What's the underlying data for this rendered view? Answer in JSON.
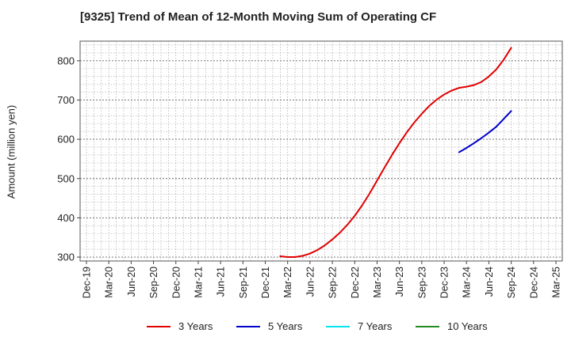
{
  "chart_data": {
    "type": "line",
    "title": "[9325]  Trend of Mean of 12-Month Moving Sum of Operating CF",
    "xlabel": "",
    "ylabel": "Amount (million yen)",
    "ylim": [
      290,
      850
    ],
    "yticks": [
      300,
      400,
      500,
      600,
      700,
      800
    ],
    "xtick_labels": [
      "Dec-19",
      "Mar-20",
      "Jun-20",
      "Sep-20",
      "Dec-20",
      "Mar-21",
      "Jun-21",
      "Sep-21",
      "Dec-21",
      "Mar-22",
      "Jun-22",
      "Sep-22",
      "Dec-22",
      "Mar-23",
      "Jun-23",
      "Sep-23",
      "Dec-23",
      "Mar-24",
      "Jun-24",
      "Sep-24",
      "Dec-24",
      "Mar-25"
    ],
    "grid": true,
    "legend_position": "bottom",
    "series": [
      {
        "name": "3 Years",
        "color": "#e00000",
        "points": [
          [
            "Feb-22",
            302
          ],
          [
            "Mar-22",
            300
          ],
          [
            "Apr-22",
            300
          ],
          [
            "May-22",
            303
          ],
          [
            "Jun-22",
            309
          ],
          [
            "Jul-22",
            318
          ],
          [
            "Aug-22",
            330
          ],
          [
            "Sep-22",
            345
          ],
          [
            "Oct-22",
            362
          ],
          [
            "Nov-22",
            382
          ],
          [
            "Dec-22",
            405
          ],
          [
            "Jan-23",
            432
          ],
          [
            "Feb-23",
            462
          ],
          [
            "Mar-23",
            495
          ],
          [
            "Apr-23",
            528
          ],
          [
            "May-23",
            560
          ],
          [
            "Jun-23",
            590
          ],
          [
            "Jul-23",
            618
          ],
          [
            "Aug-23",
            643
          ],
          [
            "Sep-23",
            665
          ],
          [
            "Oct-23",
            685
          ],
          [
            "Nov-23",
            701
          ],
          [
            "Dec-23",
            714
          ],
          [
            "Jan-24",
            724
          ],
          [
            "Feb-24",
            731
          ],
          [
            "Mar-24",
            734
          ],
          [
            "Apr-24",
            738
          ],
          [
            "May-24",
            746
          ],
          [
            "Jun-24",
            760
          ],
          [
            "Jul-24",
            778
          ],
          [
            "Aug-24",
            803
          ],
          [
            "Sep-24",
            833
          ]
        ]
      },
      {
        "name": "5 Years",
        "color": "#0000cc",
        "points": [
          [
            "Feb-24",
            567
          ],
          [
            "Mar-24",
            578
          ],
          [
            "Apr-24",
            590
          ],
          [
            "May-24",
            603
          ],
          [
            "Jun-24",
            617
          ],
          [
            "Jul-24",
            632
          ],
          [
            "Aug-24",
            652
          ],
          [
            "Sep-24",
            672
          ]
        ]
      },
      {
        "name": "7 Years",
        "color": "#00e5ee",
        "points": []
      },
      {
        "name": "10 Years",
        "color": "#228b22",
        "points": []
      }
    ]
  }
}
